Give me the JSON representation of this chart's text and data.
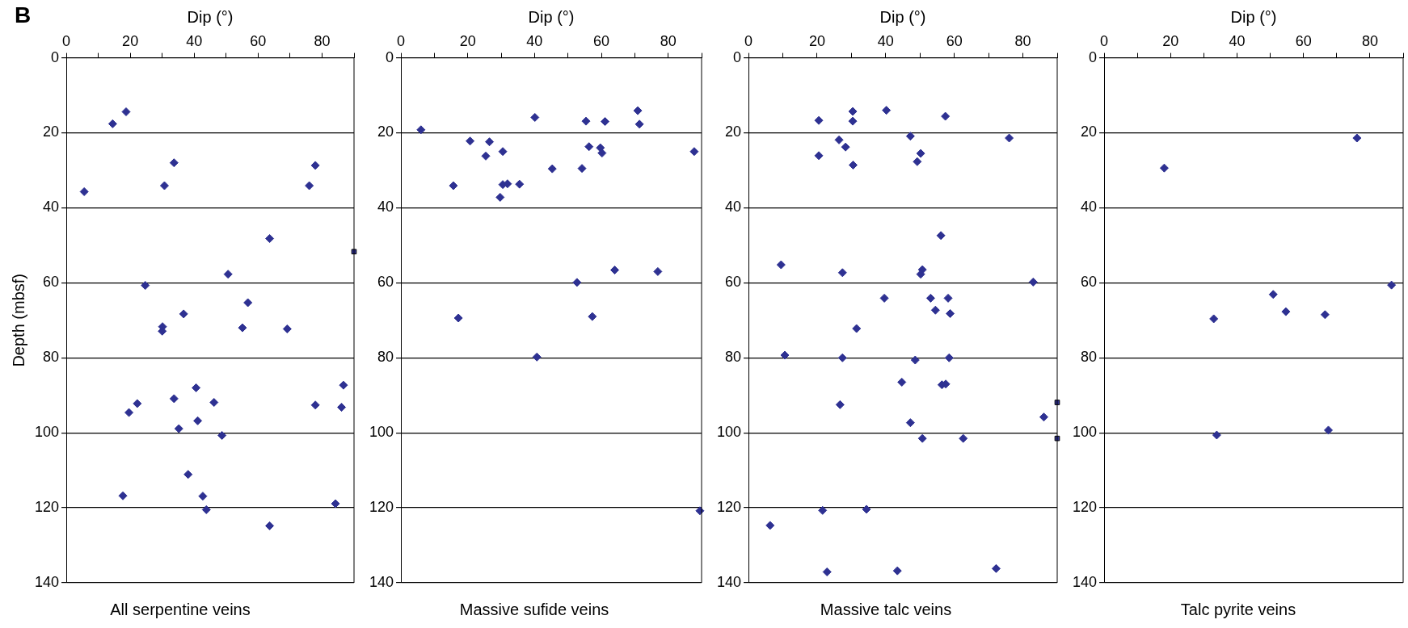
{
  "chart_data": [
    {
      "type": "scatter",
      "title": "All serpentine veins",
      "xlabel": "Dip (°)",
      "ylabel": "Depth (mbsf)",
      "annotations": [
        "B"
      ],
      "xlim": [
        0,
        90
      ],
      "xticks": [
        0,
        {
          "value": 10,
          "label": null
        },
        20,
        {
          "value": 30,
          "label": null
        },
        40,
        {
          "value": 50,
          "label": null
        },
        60,
        {
          "value": 70,
          "label": null
        },
        80,
        {
          "value": 90,
          "label": null
        }
      ],
      "ylim": [
        140,
        0
      ],
      "yticks": [
        0,
        20,
        40,
        60,
        80,
        100,
        120,
        140
      ],
      "grid": "y",
      "marker": "diamond",
      "legend": false,
      "series": [
        {
          "color": "#2e3192",
          "x": [
            18.7,
            14.5,
            33.7,
            77.9,
            30.7,
            76.0,
            5.6,
            63.6,
            50.6,
            24.7,
            56.8,
            36.7,
            30.1,
            30.0,
            55.1,
            69.1,
            40.6,
            86.7,
            33.7,
            22.2,
            46.2,
            77.9,
            86.1,
            19.6,
            41.1,
            35.2,
            48.7,
            38.1,
            17.7,
            42.7,
            84.2,
            43.8,
            63.6
          ],
          "values": [
            14.4,
            17.6,
            28.0,
            28.7,
            34.1,
            34.1,
            35.7,
            48.2,
            57.7,
            60.7,
            65.3,
            68.3,
            71.7,
            72.9,
            72.0,
            72.3,
            88.0,
            87.3,
            90.9,
            92.2,
            91.9,
            92.6,
            93.2,
            94.6,
            96.8,
            98.9,
            100.7,
            111.1,
            116.8,
            116.9,
            118.9,
            120.5,
            124.8
          ]
        },
        {
          "color": "#2e3192",
          "marker": "square",
          "x": [
            90
          ],
          "values": [
            51.7
          ]
        }
      ]
    },
    {
      "type": "scatter",
      "title": "Massive sufide veins",
      "xlabel": "Dip (°)",
      "xlim": [
        0,
        90
      ],
      "xticks": [
        0,
        {
          "value": 10,
          "label": null
        },
        20,
        {
          "value": 30,
          "label": null
        },
        40,
        {
          "value": 50,
          "label": null
        },
        60,
        {
          "value": 70,
          "label": null
        },
        80,
        {
          "value": 90,
          "label": null
        }
      ],
      "ylim": [
        140,
        0
      ],
      "yticks": [
        0,
        20,
        40,
        60,
        80,
        100,
        120,
        140
      ],
      "grid": "y",
      "marker": "diamond",
      "legend": false,
      "series": [
        {
          "color": "#2e3192",
          "x": [
            6.0,
            20.7,
            26.5,
            25.4,
            30.5,
            15.7,
            30.5,
            31.9,
            35.5,
            29.7,
            40.1,
            45.3,
            54.2,
            55.4,
            61.1,
            56.3,
            59.7,
            60.2,
            70.9,
            71.4,
            87.8,
            64.0,
            76.9,
            52.7,
            57.3,
            17.2,
            40.7,
            89.5
          ],
          "values": [
            19.2,
            22.2,
            22.4,
            26.2,
            25.0,
            34.1,
            33.8,
            33.6,
            33.7,
            37.2,
            15.9,
            29.6,
            29.5,
            16.9,
            17.0,
            23.7,
            24.0,
            25.4,
            14.1,
            17.7,
            25.0,
            56.6,
            57.0,
            59.9,
            69.0,
            69.4,
            79.8,
            120.8
          ]
        }
      ]
    },
    {
      "type": "scatter",
      "title": "Massive talc veins",
      "xlabel": "Dip (°)",
      "xlim": [
        0,
        90
      ],
      "xticks": [
        0,
        {
          "value": 10,
          "label": null
        },
        20,
        {
          "value": 30,
          "label": null
        },
        40,
        {
          "value": 50,
          "label": null
        },
        60,
        {
          "value": 70,
          "label": null
        },
        80,
        {
          "value": 90,
          "label": null
        }
      ],
      "ylim": [
        140,
        0
      ],
      "yticks": [
        0,
        20,
        40,
        60,
        80,
        100,
        120,
        140
      ],
      "grid": "y",
      "marker": "diamond",
      "legend": false,
      "series": [
        {
          "color": "#2e3192",
          "x": [
            20.5,
            30.4,
            30.4,
            40.2,
            57.4,
            26.4,
            28.3,
            20.5,
            30.5,
            47.2,
            50.2,
            49.2,
            76.0,
            56.1,
            9.5,
            27.4,
            50.7,
            50.2,
            83.0,
            39.6,
            53.1,
            58.2,
            54.5,
            58.8,
            31.5,
            10.6,
            27.4,
            48.6,
            58.5,
            44.7,
            56.4,
            57.5,
            26.7,
            47.2,
            86.1,
            50.7,
            62.6,
            21.6,
            34.4,
            6.3,
            22.9,
            43.4,
            72.2
          ],
          "values": [
            16.7,
            14.3,
            16.9,
            14.0,
            15.6,
            21.9,
            23.8,
            26.1,
            28.6,
            20.9,
            25.5,
            27.7,
            21.4,
            47.4,
            55.2,
            57.3,
            56.5,
            57.7,
            59.8,
            64.1,
            64.1,
            64.1,
            67.3,
            68.2,
            72.2,
            79.3,
            80.0,
            80.6,
            80.0,
            86.5,
            87.2,
            87.0,
            92.5,
            97.3,
            95.8,
            101.5,
            101.5,
            120.7,
            120.4,
            124.7,
            137.1,
            136.8,
            136.2
          ]
        },
        {
          "color": "#2e3192",
          "marker": "square",
          "x": [
            90,
            90
          ],
          "values": [
            91.9,
            101.5
          ]
        }
      ]
    },
    {
      "type": "scatter",
      "title": "Talc pyrite veins",
      "xlabel": "Dip (°)",
      "xlim": [
        0,
        90
      ],
      "xticks": [
        0,
        {
          "value": 10,
          "label": null
        },
        20,
        {
          "value": 30,
          "label": null
        },
        40,
        {
          "value": 50,
          "label": null
        },
        60,
        {
          "value": 70,
          "label": null
        },
        80,
        {
          "value": 90,
          "label": null
        }
      ],
      "ylim": [
        140,
        0
      ],
      "yticks": [
        0,
        20,
        40,
        60,
        80,
        100,
        120,
        140
      ],
      "grid": "y",
      "marker": "diamond",
      "legend": false,
      "series": [
        {
          "color": "#2e3192",
          "x": [
            76.1,
            18.1,
            86.5,
            50.9,
            54.7,
            66.5,
            33.0,
            67.5,
            33.9
          ],
          "values": [
            21.4,
            29.4,
            60.6,
            63.1,
            67.7,
            68.5,
            69.6,
            99.3,
            100.6
          ]
        }
      ]
    }
  ]
}
